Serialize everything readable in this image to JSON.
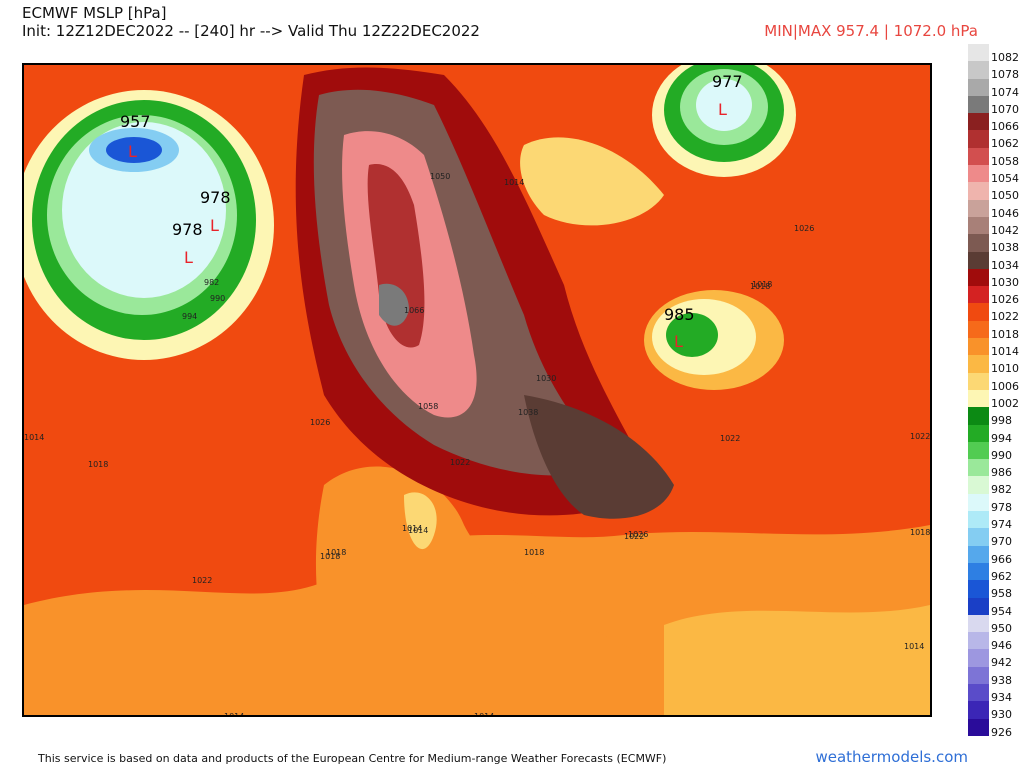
{
  "header": {
    "title": "ECMWF MSLP [hPa]",
    "init": "Init: 12Z12DEC2022 -- [240] hr --> Valid Thu 12Z22DEC2022",
    "minmax": "MIN|MAX 957.4 | 1072.0 hPa"
  },
  "footer": {
    "note": "This service is based on data and products of the European Centre for Medium-range Weather Forecasts (ECMWF)",
    "brand": "weathermodels.com"
  },
  "map": {
    "centers": [
      {
        "value": "957",
        "low": "L"
      },
      {
        "value": "978",
        "low": "L"
      },
      {
        "value": "978",
        "low": "L"
      },
      {
        "value": "977",
        "low": "L"
      },
      {
        "value": "985",
        "low": "L"
      }
    ],
    "isobar_labels": [
      "982",
      "990",
      "994",
      "1014",
      "1018",
      "1022",
      "1026",
      "1018",
      "1022",
      "1014",
      "1018",
      "1022",
      "1026",
      "1018",
      "1030",
      "1038",
      "1050",
      "1058",
      "1066",
      "1014",
      "1018",
      "1014",
      "1018",
      "1022",
      "1014",
      "1014",
      "1022",
      "1026",
      "1018",
      "1014"
    ]
  },
  "colorbar": {
    "levels": [
      {
        "label": "1082",
        "color": "#e6e6e6"
      },
      {
        "label": "1078",
        "color": "#c8c8c8"
      },
      {
        "label": "1074",
        "color": "#a9a9a9"
      },
      {
        "label": "1070",
        "color": "#7a7a7a"
      },
      {
        "label": "1066",
        "color": "#8a2020"
      },
      {
        "label": "1062",
        "color": "#b03030"
      },
      {
        "label": "1058",
        "color": "#d24f4f"
      },
      {
        "label": "1054",
        "color": "#ee8a8a"
      },
      {
        "label": "1050",
        "color": "#efb4ad"
      },
      {
        "label": "1046",
        "color": "#c9a29a"
      },
      {
        "label": "1042",
        "color": "#a88078"
      },
      {
        "label": "1038",
        "color": "#7d5a52"
      },
      {
        "label": "1034",
        "color": "#5a3c34"
      },
      {
        "label": "1030",
        "color": "#a00c0c"
      },
      {
        "label": "1026",
        "color": "#d42222"
      },
      {
        "label": "1022",
        "color": "#f04a10"
      },
      {
        "label": "1018",
        "color": "#f66a1a"
      },
      {
        "label": "1014",
        "color": "#f9922a"
      },
      {
        "label": "1010",
        "color": "#fbb844"
      },
      {
        "label": "1006",
        "color": "#fcd874"
      },
      {
        "label": "1002",
        "color": "#fdf6b4"
      },
      {
        "label": "998",
        "color": "#0c8a14"
      },
      {
        "label": "994",
        "color": "#23ab25"
      },
      {
        "label": "990",
        "color": "#52cc52"
      },
      {
        "label": "986",
        "color": "#9ae89a"
      },
      {
        "label": "982",
        "color": "#d9f9d4"
      },
      {
        "label": "978",
        "color": "#dcf9fa"
      },
      {
        "label": "974",
        "color": "#aeeaf7"
      },
      {
        "label": "970",
        "color": "#84cdf2"
      },
      {
        "label": "966",
        "color": "#55a8ec"
      },
      {
        "label": "962",
        "color": "#2e7fe3"
      },
      {
        "label": "958",
        "color": "#1a56d6"
      },
      {
        "label": "954",
        "color": "#1a3fc6"
      },
      {
        "label": "950",
        "color": "#d9d9ef"
      },
      {
        "label": "946",
        "color": "#b8b7e8"
      },
      {
        "label": "942",
        "color": "#9d97e0"
      },
      {
        "label": "938",
        "color": "#7d74d6"
      },
      {
        "label": "934",
        "color": "#5a4cc9"
      },
      {
        "label": "930",
        "color": "#3b26b6"
      },
      {
        "label": "926",
        "color": "#2a0c9a"
      }
    ]
  }
}
